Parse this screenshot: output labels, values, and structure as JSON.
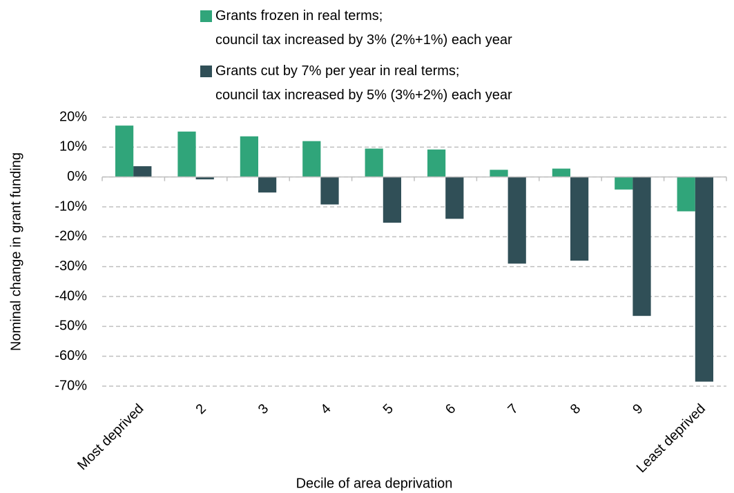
{
  "chart_data": {
    "type": "bar",
    "categories": [
      "Most deprived",
      "2",
      "3",
      "4",
      "5",
      "6",
      "7",
      "8",
      "9",
      "Least deprived"
    ],
    "series": [
      {
        "name": "Grants frozen in real terms;\ncouncil tax increased by 3% (2%+1%) each year",
        "color": "#30a57a",
        "values": [
          17.2,
          15.2,
          13.6,
          12.0,
          9.5,
          9.2,
          2.4,
          2.8,
          -4.2,
          -11.5
        ]
      },
      {
        "name": "Grants cut by 7% per year in real terms;\ncouncil tax increased by 5% (3%+2%) each year",
        "color": "#304f57",
        "values": [
          3.6,
          -0.8,
          -5.2,
          -9.2,
          -15.3,
          -14.0,
          -29.0,
          -28.0,
          -46.5,
          -68.5
        ]
      }
    ],
    "ylim": [
      -70,
      20
    ],
    "yticks": [
      {
        "value": -70,
        "label": "-70%"
      },
      {
        "value": -60,
        "label": "-60%"
      },
      {
        "value": -50,
        "label": "-50%"
      },
      {
        "value": -40,
        "label": "-40%"
      },
      {
        "value": -30,
        "label": "-30%"
      },
      {
        "value": -20,
        "label": "-20%"
      },
      {
        "value": -10,
        "label": "-10%"
      },
      {
        "value": 0,
        "label": "0%"
      },
      {
        "value": 10,
        "label": "10%"
      },
      {
        "value": 20,
        "label": "20%"
      }
    ],
    "ylabel": "Nominal change in grant funding",
    "xlabel": "Decile of area deprivation",
    "grid": true,
    "legend": "top"
  }
}
